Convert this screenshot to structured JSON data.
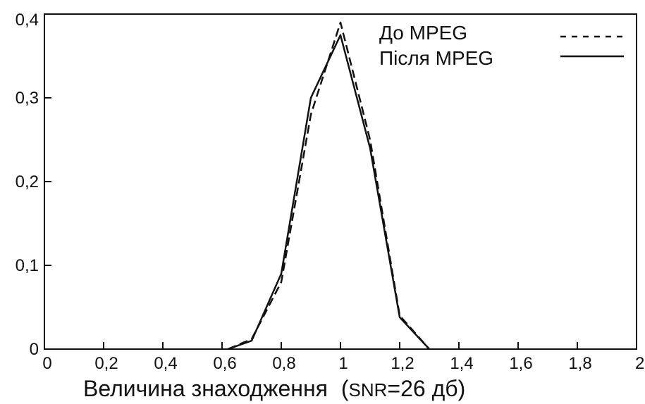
{
  "chart_data": {
    "type": "line",
    "xlabel_main": "Величина знаходження",
    "xlabel_paren": "(",
    "xlabel_snr": "SNR",
    "xlabel_value": "=26 дб)",
    "xlim": [
      0,
      2
    ],
    "ylim": [
      0,
      0.4
    ],
    "x_ticks": [
      0,
      0.2,
      0.4,
      0.6,
      0.8,
      1,
      1.2,
      1.4,
      1.6,
      1.8,
      2
    ],
    "x_tick_labels": [
      "0",
      "0,2",
      "0,4",
      "0,6",
      "0,8",
      "1",
      "1,2",
      "1,4",
      "1,6",
      "1,8",
      "2"
    ],
    "y_ticks": [
      0,
      0.1,
      0.2,
      0.3,
      0.4
    ],
    "y_tick_labels": [
      "0",
      "0,1",
      "0,2",
      "0,3",
      "0,4"
    ],
    "grid": false,
    "legend_position": "top-right",
    "series": [
      {
        "name": "До MPEG",
        "style": "dashed",
        "color": "#111111",
        "x": [
          0.62,
          0.7,
          0.8,
          0.9,
          1.0,
          1.1,
          1.2,
          1.3
        ],
        "y": [
          0.0,
          0.012,
          0.08,
          0.28,
          0.39,
          0.25,
          0.04,
          0.0
        ]
      },
      {
        "name": "Після MPEG",
        "style": "solid",
        "color": "#111111",
        "x": [
          0.62,
          0.7,
          0.8,
          0.9,
          1.0,
          1.1,
          1.2,
          1.3
        ],
        "y": [
          0.0,
          0.01,
          0.09,
          0.3,
          0.375,
          0.24,
          0.038,
          0.0
        ]
      }
    ]
  }
}
